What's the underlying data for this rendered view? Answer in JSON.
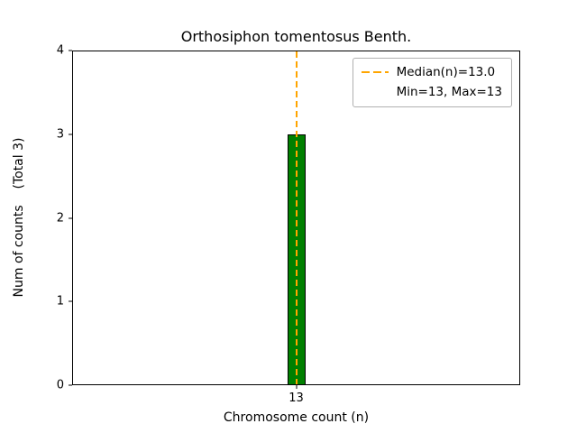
{
  "chart_data": {
    "type": "bar",
    "title": "Orthosiphon tomentosus Benth.",
    "xlabel": "Chromosome count (n)",
    "ylabel": "Num of counts    (Total 3)",
    "categories": [
      "13"
    ],
    "values": [
      3
    ],
    "total": 3,
    "ylim": [
      0,
      4
    ],
    "yticks": [
      "0",
      "1",
      "2",
      "3",
      "4"
    ],
    "xticks": [
      "13"
    ],
    "grid": false,
    "bar_color": "#008000",
    "bar_edge_color": "#000000",
    "median_line": {
      "value": 13.0,
      "color": "#ffa500",
      "style": "dashed"
    },
    "legend": {
      "position": "upper right",
      "entries": [
        {
          "label": "Median(n)=13.0",
          "has_line": true
        },
        {
          "label": "Min=13, Max=13",
          "has_line": false
        }
      ]
    }
  }
}
